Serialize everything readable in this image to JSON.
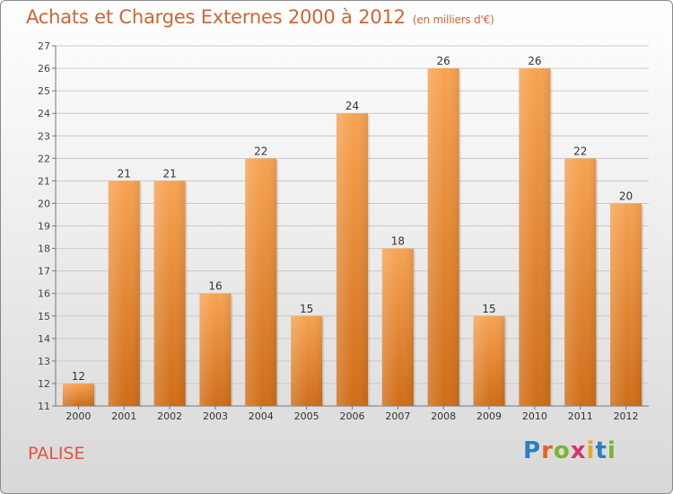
{
  "title": "Achats et Charges Externes 2000 à 2012",
  "unit": "(en milliers d'€)",
  "town": "PALISE",
  "brand": "Proxiti",
  "brand_colors": [
    "#2a7fc6",
    "#e8622a",
    "#79b52f",
    "#d6336c",
    "#e8a72a",
    "#2a7fc6",
    "#79b52f"
  ],
  "colors": {
    "bar_top": "#f7a352",
    "bar_bottom": "#cf6d17",
    "title": "#cc6633",
    "town": "#e0533a"
  },
  "chart_data": {
    "type": "bar",
    "categories": [
      "2000",
      "2001",
      "2002",
      "2003",
      "2004",
      "2005",
      "2006",
      "2007",
      "2008",
      "2009",
      "2010",
      "2011",
      "2012"
    ],
    "values": [
      12,
      21,
      21,
      16,
      22,
      15,
      24,
      18,
      26,
      15,
      26,
      22,
      20
    ],
    "ylim": [
      11,
      27
    ],
    "yticks": [
      11,
      12,
      13,
      14,
      15,
      16,
      17,
      18,
      19,
      20,
      21,
      22,
      23,
      24,
      25,
      26,
      27
    ],
    "grid": true,
    "xlabel": "",
    "ylabel": ""
  }
}
